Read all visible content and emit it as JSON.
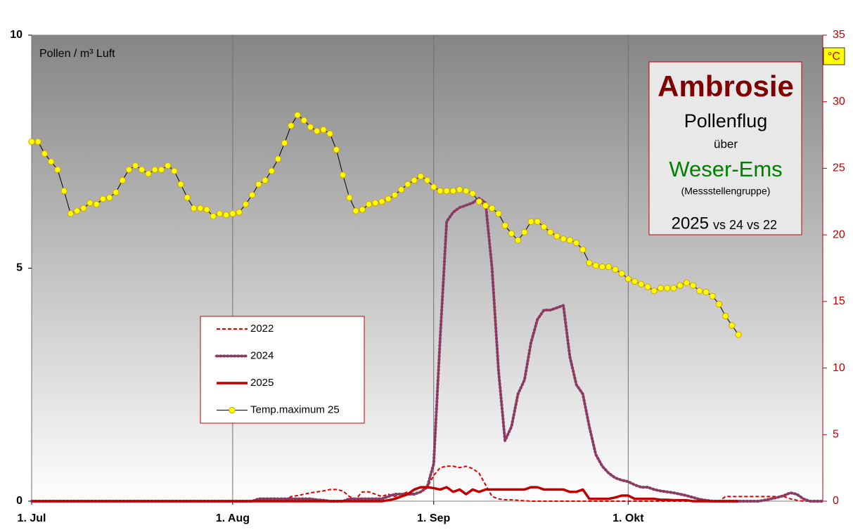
{
  "chart_data": {
    "type": "line",
    "ylabel": "Pollen  / m³ Luft",
    "y2label": "°C",
    "panel": {
      "title": "Ambrosie",
      "line1": "Pollenflug",
      "line2": "über",
      "region": "Weser-Ems",
      "note": "(Messstellengruppe)",
      "year": "2025",
      "compare": "vs 24 vs 22"
    },
    "x": [
      0,
      1,
      2,
      3,
      4,
      5,
      6,
      7,
      8,
      9,
      10,
      11,
      12,
      13,
      14,
      15,
      16,
      17,
      18,
      19,
      20,
      21,
      22,
      23,
      24,
      25,
      26,
      27,
      28,
      29,
      30,
      31,
      32,
      33,
      34,
      35,
      36,
      37,
      38,
      39,
      40,
      41,
      42,
      43,
      44,
      45,
      46,
      47,
      48,
      49,
      50,
      51,
      52,
      53,
      54,
      55,
      56,
      57,
      58,
      59,
      60,
      61,
      62,
      63,
      64,
      65,
      66,
      67,
      68,
      69,
      70,
      71,
      72,
      73,
      74,
      75,
      76,
      77,
      78,
      79,
      80,
      81,
      82,
      83,
      84,
      85,
      86,
      87,
      88,
      89,
      90,
      91,
      92,
      93,
      94,
      95,
      96,
      97,
      98,
      99,
      100,
      101,
      102,
      103,
      104,
      105,
      106,
      107,
      108,
      109,
      110,
      111,
      112,
      113,
      114,
      115,
      116,
      117,
      118,
      119,
      120,
      121,
      122
    ],
    "xlim": [
      0,
      122
    ],
    "xticks": [
      {
        "value": 0,
        "label": "1. Jul"
      },
      {
        "value": 31,
        "label": "1. Aug"
      },
      {
        "value": 62,
        "label": "1. Sep"
      },
      {
        "value": 92,
        "label": "1. Okt"
      }
    ],
    "ylim": [
      0,
      10
    ],
    "yticks": [
      0,
      5,
      10
    ],
    "y2lim": [
      0,
      35
    ],
    "y2ticks": [
      0,
      5,
      10,
      15,
      20,
      25,
      30,
      35
    ],
    "grid": "x",
    "series": [
      {
        "name": "2022",
        "color": "#e00000",
        "style": "dashed",
        "values": [
          0,
          0,
          0,
          0,
          0,
          0,
          0,
          0,
          0,
          0,
          0,
          0,
          0,
          0,
          0,
          0,
          0,
          0,
          0,
          0,
          0,
          0,
          0,
          0,
          0,
          0,
          0,
          0,
          0,
          0,
          0,
          0,
          0,
          0,
          0,
          0,
          0,
          0,
          0,
          0,
          0.1,
          0.12,
          0.15,
          0.18,
          0.2,
          0.22,
          0.25,
          0.25,
          0.22,
          0.1,
          0.05,
          0.2,
          0.2,
          0.15,
          0.1,
          0.15,
          0.1,
          0.15,
          0.2,
          0.15,
          0.2,
          0.3,
          0.55,
          0.72,
          0.75,
          0.75,
          0.72,
          0.75,
          0.7,
          0.6,
          0.35,
          0.1,
          0.05,
          0.03,
          0.03,
          0.02,
          0.01,
          0,
          0,
          0,
          0,
          0,
          0,
          0,
          0,
          0,
          0,
          0,
          0,
          0,
          0,
          0,
          0,
          0,
          0,
          0,
          0,
          0,
          0,
          0,
          0,
          0,
          0,
          0,
          0,
          0,
          0,
          0.1,
          0.1,
          0.1,
          0.1,
          0.1,
          0.1,
          0.1,
          0.1,
          0.1,
          0.1,
          0.05,
          0.02,
          0,
          0,
          0,
          0
        ]
      },
      {
        "name": "2024",
        "color": "#8b3a62",
        "style": "dotted",
        "values": [
          0,
          0,
          0,
          0,
          0,
          0,
          0,
          0,
          0,
          0,
          0,
          0,
          0,
          0,
          0,
          0,
          0,
          0,
          0,
          0,
          0,
          0,
          0,
          0,
          0,
          0,
          0,
          0,
          0,
          0,
          0,
          0,
          0,
          0,
          0,
          0.05,
          0.05,
          0.05,
          0.05,
          0.05,
          0.05,
          0.05,
          0.05,
          0.05,
          0.03,
          0.02,
          0,
          0,
          0,
          0.05,
          0.05,
          0.05,
          0.05,
          0.05,
          0.05,
          0.1,
          0.15,
          0.15,
          0.15,
          0.15,
          0.2,
          0.3,
          0.8,
          3.5,
          6.0,
          6.2,
          6.3,
          6.35,
          6.4,
          6.5,
          6.4,
          5.0,
          2.8,
          1.3,
          1.6,
          2.3,
          2.6,
          3.4,
          3.9,
          4.1,
          4.1,
          4.15,
          4.2,
          3.1,
          2.5,
          2.3,
          1.6,
          1.0,
          0.75,
          0.6,
          0.5,
          0.45,
          0.42,
          0.35,
          0.3,
          0.3,
          0.25,
          0.22,
          0.2,
          0.18,
          0.15,
          0.12,
          0.08,
          0.04,
          0.02,
          0,
          0,
          0,
          0,
          0,
          0,
          0,
          0,
          0.02,
          0.05,
          0.08,
          0.12,
          0.18,
          0.15,
          0.05,
          0,
          0,
          0
        ]
      },
      {
        "name": "2025",
        "color": "#c00000",
        "style": "solid",
        "values": [
          0,
          0,
          0,
          0,
          0,
          0,
          0,
          0,
          0,
          0,
          0,
          0,
          0,
          0,
          0,
          0,
          0,
          0,
          0,
          0,
          0,
          0,
          0,
          0,
          0,
          0,
          0,
          0,
          0,
          0,
          0,
          0,
          0,
          0,
          0,
          0,
          0,
          0,
          0,
          0,
          0,
          0,
          0,
          0,
          0,
          0,
          0,
          0,
          0,
          0,
          0,
          0,
          0,
          0,
          0,
          0.02,
          0.05,
          0.1,
          0.15,
          0.25,
          0.3,
          0.3,
          0.28,
          0.25,
          0.3,
          0.2,
          0.25,
          0.15,
          0.25,
          0.2,
          0.25,
          0.25,
          0.25,
          0.25,
          0.25,
          0.25,
          0.25,
          0.3,
          0.3,
          0.25,
          0.25,
          0.25,
          0.25,
          0.2,
          0.2,
          0.25,
          0.05,
          0.05,
          0.05,
          0.05,
          0.08,
          0.12,
          0.12,
          0.05,
          0.05,
          0.05,
          0.05,
          0.03,
          0.03,
          0.02,
          0.02,
          0.02,
          0,
          0,
          0,
          0,
          0,
          0,
          0,
          0,
          null,
          null,
          null,
          null,
          null,
          null,
          null,
          null,
          null,
          null,
          null,
          null,
          null
        ]
      },
      {
        "name": "Temp.maximum 25",
        "color": "#000000",
        "marker_color": "#ffff00",
        "style": "marker",
        "axis": "y2",
        "values": [
          27.0,
          27.0,
          26.1,
          25.5,
          24.9,
          23.3,
          21.6,
          21.8,
          22.0,
          22.4,
          22.3,
          22.7,
          22.8,
          23.2,
          24.1,
          24.9,
          25.2,
          24.9,
          24.6,
          24.9,
          24.9,
          25.2,
          24.8,
          23.8,
          22.8,
          22.0,
          22.0,
          21.9,
          21.4,
          21.6,
          21.5,
          21.6,
          21.7,
          22.3,
          23.0,
          23.8,
          24.1,
          24.8,
          25.7,
          26.9,
          28.2,
          29.0,
          28.6,
          28.1,
          27.8,
          27.9,
          27.6,
          26.4,
          24.5,
          22.8,
          21.8,
          21.9,
          22.3,
          22.4,
          22.5,
          22.7,
          23.0,
          23.4,
          23.8,
          24.1,
          24.4,
          24.1,
          23.6,
          23.3,
          23.3,
          23.3,
          23.4,
          23.3,
          23.1,
          22.5,
          22.2,
          22.0,
          21.6,
          20.7,
          20.1,
          19.6,
          20.2,
          21.0,
          21.0,
          20.6,
          20.2,
          19.9,
          19.7,
          19.6,
          19.4,
          18.9,
          17.9,
          17.7,
          17.6,
          17.6,
          17.4,
          17.1,
          16.7,
          16.5,
          16.3,
          16.1,
          15.8,
          16.0,
          16.0,
          16.0,
          16.2,
          16.4,
          16.2,
          15.8,
          15.7,
          15.4,
          14.8,
          13.9,
          13.2,
          12.5,
          null,
          null,
          null,
          null,
          null,
          null,
          null,
          null,
          null,
          null,
          null,
          null,
          null
        ]
      }
    ]
  }
}
